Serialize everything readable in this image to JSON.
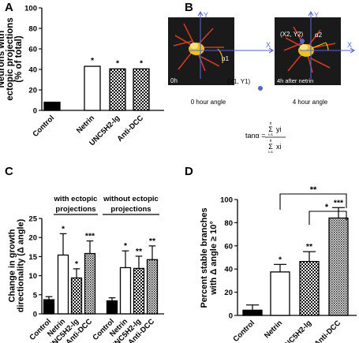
{
  "colors": {
    "hatch": "#000000",
    "bar_fill": "#ffffff",
    "axis": "#000000",
    "angle_line": "#f5c000",
    "point": "#5565c8",
    "image_bg": "#1a1a1a",
    "cell": "#d03a20"
  },
  "panel_labels": {
    "a": "A",
    "b": "B",
    "c": "C",
    "d": "D"
  },
  "panel_b": {
    "left_image": {
      "label": "0h",
      "angle": "α1",
      "point": "(X1, Y1)",
      "x_axis": "X",
      "y_axis": "Y",
      "caption": "0 hour angle"
    },
    "right_image": {
      "label": "4h after netrin",
      "angle": "α2",
      "point": "(X2, Y2)",
      "x_axis": "X",
      "y_axis": "Y",
      "caption": "4 hour angle"
    },
    "formula": {
      "lhs": "tanα =",
      "top": "yi",
      "bottom": "xi",
      "sum_top": "n",
      "sum_bottom": "i=1"
    }
  },
  "panel_c": {
    "group_left": "with ectopic",
    "group_left_2": "projections",
    "group_right": "without ectopic",
    "group_right_2": "projections"
  },
  "panel_d": {
    "bracket_1": "**",
    "bracket_2": "*"
  },
  "chart_data": [
    {
      "panel": "A",
      "type": "bar",
      "categories": [
        "Control",
        "Netrin",
        "UNC5H2-lg",
        "Anti-DCC"
      ],
      "values": [
        8,
        43,
        40.5,
        40.5
      ],
      "errors": [
        0,
        0,
        0,
        0
      ],
      "annotations": [
        "",
        "*",
        "*",
        "*"
      ],
      "fills": [
        "solid",
        "white",
        "checker",
        "checker"
      ],
      "ylabel": [
        "Neurons with",
        "ectopic projections",
        "(% of total)"
      ],
      "ylim": [
        0,
        100
      ],
      "yticks": [
        "0",
        "20",
        "40",
        "60",
        "80",
        "100"
      ]
    },
    {
      "panel": "C",
      "type": "bar",
      "categories": [
        "Control",
        "Netrin",
        "UNC5H2-lg",
        "Anti-DCC",
        "Control",
        "Netrin",
        "UNC5H2-lg",
        "Anti-DCC"
      ],
      "values": [
        3.7,
        15.4,
        9.4,
        15.8,
        3.4,
        12.1,
        11.9,
        14.2
      ],
      "errors": [
        0.8,
        5.6,
        2.4,
        3.3,
        0.8,
        4.4,
        3.2,
        3.6
      ],
      "annotations": [
        "",
        "*",
        "*",
        "***",
        "",
        "*",
        "**",
        "**"
      ],
      "fills": [
        "solid",
        "white",
        "checker",
        "hatch",
        "solid",
        "white",
        "checker",
        "hatch"
      ],
      "ylabel": [
        "Change in growth",
        "directionality (Δ angle)"
      ],
      "ylim": [
        0,
        25
      ],
      "yticks": [
        "0",
        "5",
        "10",
        "15",
        "20",
        "25"
      ]
    },
    {
      "panel": "D",
      "type": "bar",
      "categories": [
        "Control",
        "Netrin",
        "UNC5H2-lg",
        "Anti-DCC"
      ],
      "values": [
        4.5,
        37.5,
        46.5,
        84
      ],
      "errors": [
        4.5,
        6.5,
        8.5,
        9
      ],
      "annotations": [
        "",
        "*",
        "**",
        "***"
      ],
      "fills": [
        "solid",
        "white",
        "checker",
        "hatch"
      ],
      "ylabel": [
        "Percent stable branches",
        "with Δ angle ≥ 10°"
      ],
      "ylim": [
        0,
        100
      ],
      "yticks": [
        "0",
        "20",
        "40",
        "60",
        "80",
        "100"
      ]
    }
  ]
}
